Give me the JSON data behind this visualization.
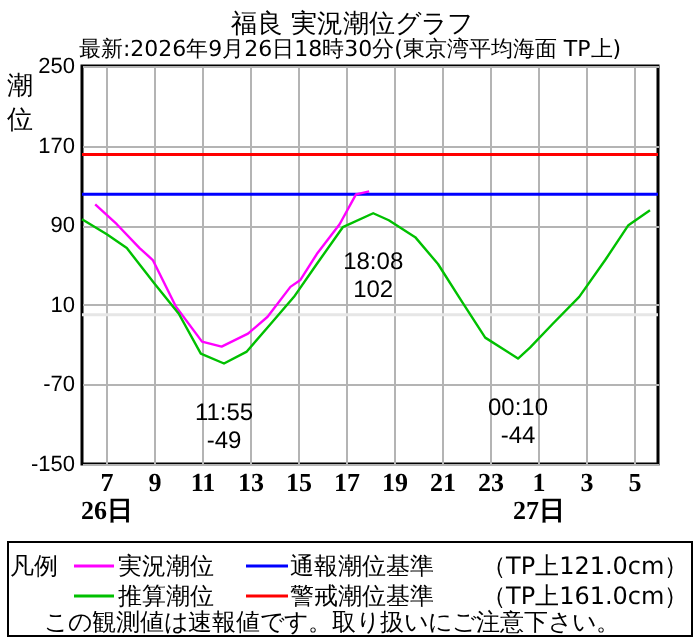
{
  "chart_data": {
    "type": "line",
    "title": "福良 実況潮位グラフ",
    "subtitle": "最新:2026年9月26日18時30分(東京湾平均海面 TP上)",
    "ylabel": "潮位",
    "legend_title": "凡例",
    "xlim": [
      "2026-09-26T06:00",
      "2026-09-27T06:00"
    ],
    "xticks": [
      {
        "value": "2026-09-26T07:00",
        "label": "7\n26日"
      },
      {
        "value": "2026-09-26T09:00",
        "label": "9"
      },
      {
        "value": "2026-09-26T11:00",
        "label": "11"
      },
      {
        "value": "2026-09-26T13:00",
        "label": "13"
      },
      {
        "value": "2026-09-26T15:00",
        "label": "15"
      },
      {
        "value": "2026-09-26T17:00",
        "label": "17"
      },
      {
        "value": "2026-09-26T19:00",
        "label": "19"
      },
      {
        "value": "2026-09-26T21:00",
        "label": "21"
      },
      {
        "value": "2026-09-26T23:00",
        "label": "23"
      },
      {
        "value": "2026-09-27T01:00",
        "label": "1\n27日"
      },
      {
        "value": "2026-09-27T03:00",
        "label": "3"
      },
      {
        "value": "2026-09-27T05:00",
        "label": "5"
      }
    ],
    "ylim": [
      -150,
      250
    ],
    "yticks": [
      -150,
      -70,
      10,
      90,
      170,
      250
    ],
    "grid": true,
    "legend": "bottom",
    "marker": "none",
    "line_style": "solid",
    "series": [
      {
        "name": "実況潮位",
        "color": "#ff00ff",
        "x": [
          "2026-09-26T06:33",
          "2026-09-26T07:27",
          "2026-09-26T08:24",
          "2026-09-26T08:57",
          "2026-09-26T09:55",
          "2026-09-26T11:00",
          "2026-09-26T11:49",
          "2026-09-26T12:55",
          "2026-09-26T13:44",
          "2026-09-26T14:41",
          "2026-09-26T15:06",
          "2026-09-26T15:47",
          "2026-09-26T16:44",
          "2026-09-26T17:25",
          "2026-09-26T17:58"
        ],
        "values": [
          111,
          91,
          67,
          55,
          8,
          -27,
          -32,
          -19,
          -2,
          28,
          35,
          61,
          91,
          121,
          124
        ]
      },
      {
        "name": "推算潮位",
        "color": "#00c000",
        "x": [
          "2026-09-26T06:00",
          "2026-09-26T07:02",
          "2026-09-26T07:52",
          "2026-09-26T09:02",
          "2026-09-26T10:02",
          "2026-09-26T10:57",
          "2026-09-26T11:55",
          "2026-09-26T12:52",
          "2026-09-26T13:52",
          "2026-09-26T14:50",
          "2026-09-26T15:47",
          "2026-09-26T16:52",
          "2026-09-26T18:08",
          "2026-09-26T18:47",
          "2026-09-26T19:53",
          "2026-09-26T20:50",
          "2026-09-26T21:47",
          "2026-09-26T22:48",
          "2026-09-27T00:10",
          "2026-09-27T00:40",
          "2026-09-27T01:37",
          "2026-09-27T02:43",
          "2026-09-27T03:48",
          "2026-09-27T04:46",
          "2026-09-27T05:40"
        ],
        "values": [
          96,
          81,
          67,
          31,
          1,
          -39,
          -49,
          -37,
          -9,
          18,
          51,
          88,
          102,
          95,
          78,
          51,
          15,
          -23,
          -44,
          -33,
          -9,
          18,
          55,
          90,
          105
        ]
      }
    ],
    "ref_lines": [
      {
        "axis": "y",
        "value": 0,
        "color": "#e6e6e6"
      },
      {
        "axis": "y",
        "value": 121,
        "label": "通報潮位基準",
        "color": "#0000ff"
      },
      {
        "axis": "y",
        "value": 161,
        "label": "警戒潮位基準",
        "color": "#ff0000"
      }
    ],
    "annotations": [
      {
        "text": "11:55\n-49",
        "x": "2026-09-26T11:55",
        "y": -49
      },
      {
        "text": "18:08\n102",
        "x": "2026-09-26T18:08",
        "y": 102
      },
      {
        "text": "00:10\n-44",
        "x": "2026-09-27T00:10",
        "y": -44
      },
      "（TP上121.0cm）",
      "（TP上161.0cm）",
      "この観測値は速報値です。取り扱いにご注意下さい。"
    ]
  }
}
